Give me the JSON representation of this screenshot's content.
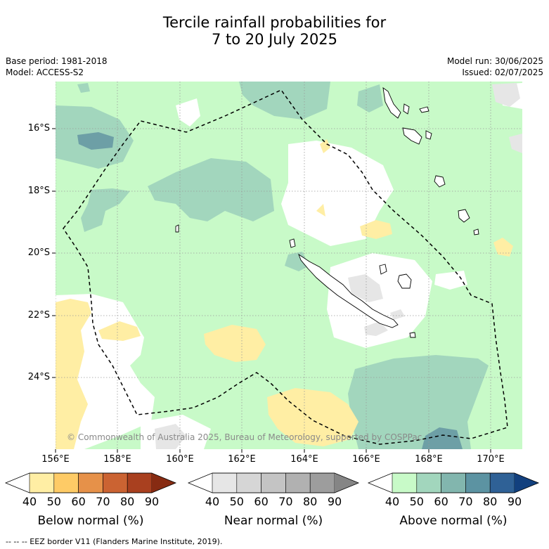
{
  "title_line1": "Tercile rainfall probabilities for",
  "title_line2": "7 to 20 July 2025",
  "base_period": "Base period: 1981-2018",
  "model": "Model: ACCESS-S2",
  "model_run": "Model run: 30/06/2025",
  "issued": "Issued: 02/07/2025",
  "lat_labels": [
    "16°S",
    "18°S",
    "20°S",
    "22°S",
    "24°S"
  ],
  "lon_labels": [
    "156°E",
    "158°E",
    "160°E",
    "162°E",
    "164°E",
    "166°E",
    "168°E",
    "170°E"
  ],
  "copyright": "© Commonwealth of Australia 2025, Bureau of Meteorology, supported by COSPPac",
  "colorbars": [
    {
      "title": "Below normal (%)",
      "ticks": [
        "40",
        "50",
        "60",
        "70",
        "80",
        "90"
      ],
      "colors": [
        "#ffffff",
        "#ffeea4",
        "#fecb66",
        "#e69149",
        "#cb6332",
        "#a9401f",
        "#872b12"
      ]
    },
    {
      "title": "Near normal (%)",
      "ticks": [
        "40",
        "50",
        "60",
        "70",
        "80",
        "90"
      ],
      "colors": [
        "#ffffff",
        "#e6e6e6",
        "#d6d6d6",
        "#c4c4c4",
        "#b1b1b1",
        "#9d9d9d",
        "#858585"
      ]
    },
    {
      "title": "Above normal (%)",
      "ticks": [
        "40",
        "50",
        "60",
        "70",
        "80",
        "90"
      ],
      "colors": [
        "#ffffff",
        "#c8fac8",
        "#a2d6bd",
        "#82b6ae",
        "#5c93a2",
        "#2f6196",
        "#12407e"
      ]
    }
  ],
  "footnote": "--  --  -- EEZ border V11 (Flanders Marine Institute, 2019).",
  "colors": {
    "above_50": "#c8fac8",
    "above_60": "#a2d6bd",
    "above_70": "#6d9fa6",
    "below_50": "#ffeea4",
    "near_50": "#e6e6e6",
    "gridline": "#9a9a9a"
  }
}
